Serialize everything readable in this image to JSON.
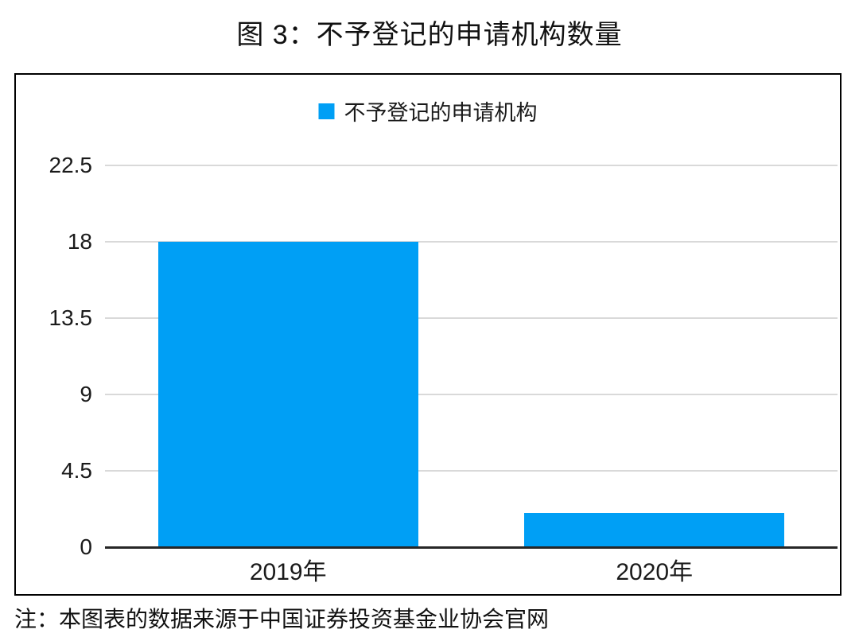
{
  "title": "图 3：不予登记的申请机构数量",
  "note": "注：本图表的数据来源于中国证券投资基金业协会官网",
  "chart_data": {
    "type": "bar",
    "title": "图 3：不予登记的申请机构数量",
    "legend": "不予登记的申请机构",
    "legend_position": "top-center",
    "categories": [
      "2019年",
      "2020年"
    ],
    "values": [
      18,
      2
    ],
    "xlabel": "",
    "ylabel": "",
    "yticks": [
      0,
      4.5,
      9,
      13.5,
      18,
      22.5
    ],
    "ylim": [
      0,
      22.5
    ],
    "grid": "horizontal",
    "colors": {
      "bar": "#009FF5",
      "gridline": "#D9D9D9",
      "axis_line": "#262626",
      "frame_border": "#000000",
      "text": "#1a1a1a"
    }
  }
}
